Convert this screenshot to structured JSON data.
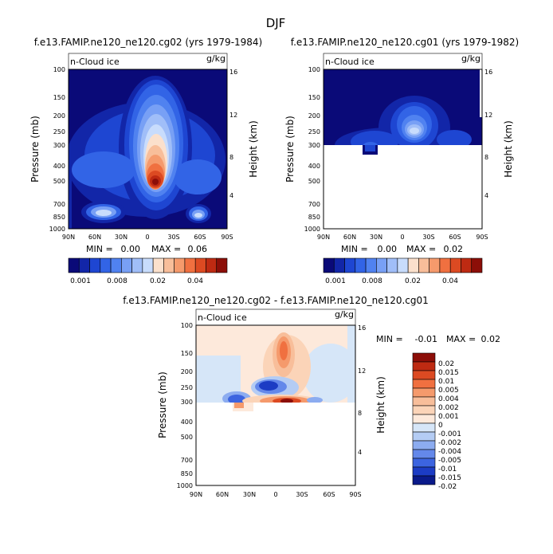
{
  "figure": {
    "title": "DJF"
  },
  "chart_data": [
    {
      "type": "heatmap",
      "panel": "top-left",
      "title": "f.e13.FAMIP.ne120_ne120.cg02 (yrs 1979-1984)",
      "field_label": "n-Cloud ice",
      "units": "g/kg",
      "ylabel": "Pressure (mb)",
      "ylabel_right": "Height (km)",
      "x_ticks": [
        "90N",
        "60N",
        "30N",
        "0",
        "30S",
        "60S",
        "90S"
      ],
      "y_ticks": [
        "100",
        "150",
        "200",
        "250",
        "300",
        "400",
        "500",
        "700",
        "850",
        "1000"
      ],
      "height_ticks": [
        "16",
        "12",
        "8",
        "4"
      ],
      "stats": {
        "min_label": "MIN =",
        "min": "0.00",
        "max_label": "MAX =",
        "max": "0.06"
      },
      "colorbar_labels": [
        "0.001",
        "0.008",
        "0.02",
        "0.04"
      ]
    },
    {
      "type": "heatmap",
      "panel": "top-right",
      "title": "f.e13.FAMIP.ne120_ne120.cg01 (yrs 1979-1982)",
      "field_label": "n-Cloud ice",
      "units": "g/kg",
      "ylabel": "Pressure (mb)",
      "ylabel_right": "Height (km)",
      "x_ticks": [
        "90N",
        "60N",
        "30N",
        "0",
        "30S",
        "60S",
        "90S"
      ],
      "y_ticks": [
        "100",
        "150",
        "200",
        "250",
        "300",
        "400",
        "500",
        "700",
        "850",
        "1000"
      ],
      "height_ticks": [
        "16",
        "12",
        "8",
        "4"
      ],
      "stats": {
        "min_label": "MIN =",
        "min": "0.00",
        "max_label": "MAX =",
        "max": "0.02"
      },
      "colorbar_labels": [
        "0.001",
        "0.008",
        "0.02",
        "0.04"
      ]
    },
    {
      "type": "heatmap",
      "panel": "bottom",
      "title": "f.e13.FAMIP.ne120_ne120.cg02 - f.e13.FAMIP.ne120_ne120.cg01",
      "field_label": "n-Cloud ice",
      "units": "g/kg",
      "ylabel": "Pressure (mb)",
      "ylabel_right": "Height (km)",
      "x_ticks": [
        "90N",
        "60N",
        "30N",
        "0",
        "30S",
        "60S",
        "90S"
      ],
      "y_ticks": [
        "100",
        "150",
        "200",
        "250",
        "300",
        "400",
        "500",
        "700",
        "850",
        "1000"
      ],
      "height_ticks": [
        "16",
        "12",
        "8",
        "4"
      ],
      "stats": {
        "min_label": "MIN =",
        "min": "-0.01",
        "max_label": "MAX =",
        "max": "0.02"
      },
      "colorbar_labels": [
        "0.02",
        "0.015",
        "0.01",
        "0.005",
        "0.004",
        "0.002",
        "0.001",
        "0",
        "-0.001",
        "-0.002",
        "-0.004",
        "-0.005",
        "-0.01",
        "-0.015",
        "-0.02"
      ]
    }
  ],
  "colors": {
    "seq": [
      "#0a0a78",
      "#1226a8",
      "#1e46d2",
      "#3264e6",
      "#5082f0",
      "#78a0f5",
      "#a0bef8",
      "#c8dcfc",
      "#fbe0cc",
      "#f8be9a",
      "#f59a6c",
      "#f07040",
      "#dc4a22",
      "#be2a12",
      "#8c0e08"
    ],
    "diff": [
      "#8c0e08",
      "#be2a12",
      "#dc4a22",
      "#f07040",
      "#f59a6c",
      "#f8be9a",
      "#fbd4b8",
      "#fde9db",
      "#d6e6f8",
      "#b4ccf4",
      "#8cacf0",
      "#6488ea",
      "#3c64e0",
      "#1c3cc4",
      "#0a1a8a"
    ]
  }
}
